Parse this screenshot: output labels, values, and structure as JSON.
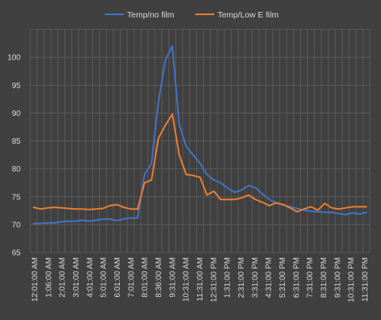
{
  "chart_data": {
    "type": "line",
    "ylim": [
      65,
      105
    ],
    "yticks": [
      65,
      70,
      75,
      80,
      85,
      90,
      95,
      100
    ],
    "grid": true,
    "legend_position": "top",
    "x_tick_labels": [
      "12:01:00 AM",
      "1:06:00 AM",
      "2:01:00 AM",
      "3:01:00 AM",
      "4:01:00 AM",
      "5:01:00 AM",
      "6:01:00 AM",
      "7:01:00 AM",
      "8:01:00 AM",
      "8:36:00 AM",
      "9:31:00 AM",
      "10:31:00 AM",
      "11:31:00 AM",
      "12:31:00 PM",
      "1:31:00 PM",
      "2:31:00 PM",
      "3:31:00 PM",
      "4:31:00 PM",
      "5:31:00 PM",
      "6:31:00 PM",
      "7:31:00 PM",
      "8:31:00 PM",
      "9:31:00 PM",
      "10:31:00 PM",
      "11:31:00 PM"
    ],
    "series": [
      {
        "name": "Temp/no film",
        "color": "#4472c4",
        "values": [
          70.2,
          70.2,
          70.3,
          70.3,
          70.5,
          70.6,
          70.6,
          70.8,
          70.6,
          70.8,
          71.0,
          71.0,
          70.7,
          71.0,
          71.2,
          71.2,
          79.0,
          81.0,
          92.0,
          99.5,
          102.0,
          88.0,
          84.0,
          82.5,
          81.0,
          79.0,
          78.0,
          77.5,
          76.5,
          75.8,
          76.2,
          77.0,
          76.6,
          75.5,
          74.5,
          73.9,
          73.5,
          73.2,
          72.9,
          72.6,
          72.4,
          72.3,
          72.2,
          72.2,
          72.0,
          71.8,
          72.1,
          71.9,
          72.2
        ]
      },
      {
        "name": "Temp/Low E film",
        "color": "#ed7d31",
        "values": [
          73.1,
          72.8,
          73.0,
          73.1,
          73.0,
          72.9,
          72.8,
          72.8,
          72.7,
          72.8,
          72.9,
          73.4,
          73.6,
          73.1,
          72.8,
          72.8,
          77.5,
          78.0,
          85.5,
          87.8,
          89.8,
          82.5,
          79.0,
          78.8,
          78.5,
          75.3,
          76.0,
          74.5,
          74.5,
          74.5,
          74.8,
          75.3,
          74.5,
          74.0,
          73.4,
          73.9,
          73.6,
          73.0,
          72.3,
          72.8,
          73.2,
          72.6,
          73.8,
          73.0,
          72.8,
          73.0,
          73.2,
          73.2,
          73.2
        ]
      }
    ]
  }
}
